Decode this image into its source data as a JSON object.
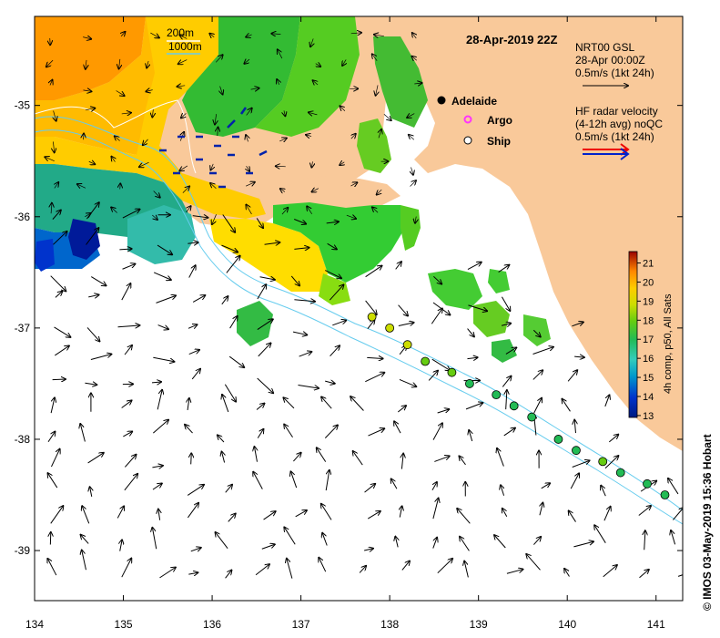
{
  "title": "28-Apr-2019 22Z",
  "credit": "© IMOS 03-May-2019 15:36 Hobart",
  "x_ticks": [
    "134",
    "135",
    "136",
    "137",
    "138",
    "139",
    "140",
    "141"
  ],
  "y_ticks": [
    "-35",
    "-36",
    "-37",
    "-38",
    "-39"
  ],
  "depth_legend": {
    "line1": "200m",
    "line2": "1000m"
  },
  "places": {
    "city": "Adelaide",
    "argo": "Argo",
    "ship": "Ship"
  },
  "gsl_legend": {
    "line1": "NRT00 GSL",
    "line2": "28-Apr 00:00Z",
    "line3": "0.5m/s (1kt 24h)"
  },
  "hf_legend": {
    "line1": "HF radar velocity",
    "line2": "(4-12h avg) noQC",
    "line3": "0.5m/s (1kt 24h)"
  },
  "colorbar": {
    "label": "4h comp, p50, All Sats",
    "ticks": [
      "13",
      "14",
      "15",
      "16",
      "17",
      "18",
      "19",
      "20",
      "21"
    ],
    "min": 12.9,
    "max": 21.6
  },
  "colors": {
    "land": "#f9c99a",
    "shelf_line": "#66ccee",
    "argo": "#ff33ff",
    "ship": "#ffffff"
  },
  "ship_track": [
    {
      "lon": 137.8,
      "lat": -36.9,
      "sst": 18.6
    },
    {
      "lon": 138.0,
      "lat": -37.0,
      "sst": 18.7
    },
    {
      "lon": 138.2,
      "lat": -37.15,
      "sst": 18.3
    },
    {
      "lon": 138.4,
      "lat": -37.3,
      "sst": 17.7
    },
    {
      "lon": 138.7,
      "lat": -37.4,
      "sst": 17.5
    },
    {
      "lon": 138.9,
      "lat": -37.5,
      "sst": 17.4
    },
    {
      "lon": 139.2,
      "lat": -37.6,
      "sst": 17.4
    },
    {
      "lon": 139.4,
      "lat": -37.7,
      "sst": 17.3
    },
    {
      "lon": 139.6,
      "lat": -37.8,
      "sst": 17.3
    },
    {
      "lon": 139.9,
      "lat": -38.0,
      "sst": 17.2
    },
    {
      "lon": 140.1,
      "lat": -38.1,
      "sst": 17.2
    },
    {
      "lon": 140.4,
      "lat": -38.2,
      "sst": 17.5
    },
    {
      "lon": 140.6,
      "lat": -38.3,
      "sst": 17.3
    },
    {
      "lon": 140.9,
      "lat": -38.4,
      "sst": 17.3
    },
    {
      "lon": 141.1,
      "lat": -38.5,
      "sst": 17.2
    }
  ]
}
